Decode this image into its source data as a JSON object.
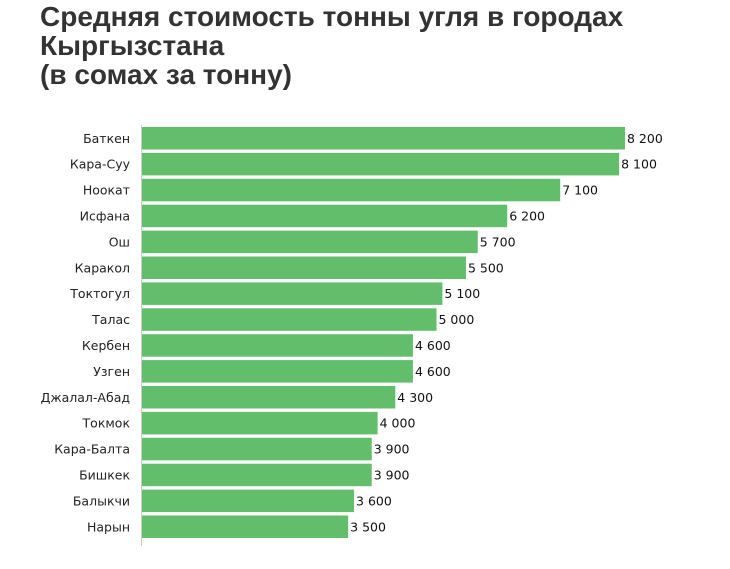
{
  "title_lines": [
    "Средняя стоимость тонны угля в городах",
    "Кыргызстана",
    "(в сомах за тонну)"
  ],
  "chart_data": {
    "type": "bar",
    "orientation": "horizontal",
    "title": "Средняя стоимость тонны угля в городах Кыргызстана (в сомах за тонну)",
    "categories": [
      "Баткен",
      "Кара-Суу",
      "Ноокат",
      "Исфана",
      "Ош",
      "Каракол",
      "Токтогул",
      "Талас",
      "Кербен",
      "Узген",
      "Джалал-Абад",
      "Токмок",
      "Кара-Балта",
      "Бишкек",
      "Балыкчи",
      "Нарын"
    ],
    "values": [
      8200,
      8100,
      7100,
      6200,
      5700,
      5500,
      5100,
      5000,
      4600,
      4600,
      4300,
      4000,
      3900,
      3900,
      3600,
      3500
    ],
    "value_labels": [
      "8 200",
      "8 100",
      "7 100",
      "6 200",
      "5 700",
      "5 500",
      "5 100",
      "5 000",
      "4 600",
      "4 600",
      "4 300",
      "4 000",
      "3 900",
      "3 900",
      "3 600",
      "3 500"
    ],
    "xlim": [
      0,
      8200
    ],
    "grid": false,
    "bar_color": "#63be6b",
    "axis_color": "#cccccc"
  }
}
